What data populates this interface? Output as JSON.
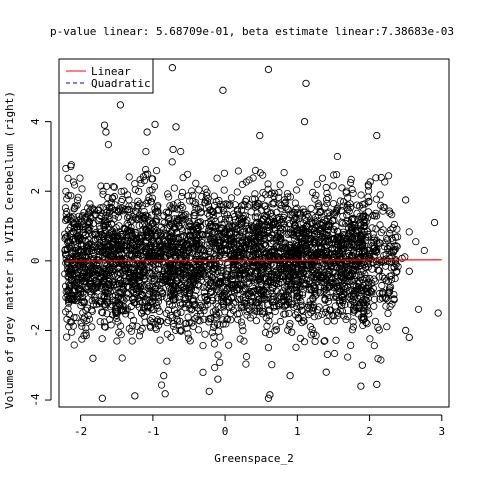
{
  "chart_data": {
    "type": "scatter",
    "title": "p-value linear: 5.68709e-01, beta estimate linear:7.38683e-03",
    "xlabel": "Greenspace_2",
    "ylabel": "Volume of grey matter in VIIb Cerebellum (right)",
    "xlim": [
      -2.3,
      3.1
    ],
    "ylim": [
      -4.2,
      5.8
    ],
    "x_ticks": [
      -2,
      -1,
      0,
      1,
      2,
      3
    ],
    "y_ticks": [
      -4,
      -2,
      0,
      2,
      4
    ],
    "x_tick_labels": [
      "-2",
      "-1",
      "0",
      "1",
      "2",
      "3"
    ],
    "y_tick_labels": [
      "-4",
      "-2",
      "0",
      "2",
      "4"
    ],
    "legend": {
      "position": "top-left",
      "entries": [
        {
          "label": "Linear",
          "color": "#ff0000",
          "style": "solid"
        },
        {
          "label": "Quadratic",
          "color": "#0000cc",
          "style": "dashed"
        }
      ]
    },
    "lines": [
      {
        "name": "Linear",
        "color": "#ff0000",
        "x": [
          -2.2,
          3.0
        ],
        "y": [
          -0.005,
          0.03
        ]
      }
    ],
    "series": [
      {
        "name": "observations",
        "marker": "open-circle",
        "color": "#000000",
        "x": [
          -1.7,
          -0.83,
          -0.22,
          0.6,
          0.62,
          1.4,
          -1.45,
          -1.67,
          -1.08,
          -0.97,
          -0.68,
          0.6,
          1.12,
          2.5,
          -0.73,
          -0.72,
          0.48,
          1.1,
          2.1,
          -1.83,
          -1.25,
          2.5,
          1.88,
          2.55,
          2.9,
          2.95,
          -1.65,
          -0.85,
          -0.03,
          0.9,
          1.9,
          2.1,
          -0.1,
          2.55
        ],
        "y": [
          -3.95,
          -3.82,
          -3.75,
          -3.95,
          -3.85,
          -3.2,
          4.48,
          3.9,
          3.7,
          3.92,
          3.85,
          5.5,
          5.1,
          1.75,
          5.55,
          3.2,
          3.6,
          4.0,
          3.6,
          -2.8,
          -3.88,
          -2.0,
          -3.6,
          -2.2,
          1.1,
          -1.5,
          3.7,
          -3.3,
          4.9,
          -3.3,
          -3.0,
          -3.55,
          -3.4,
          -0.3
        ]
      }
    ],
    "density_note_points": 60000
  }
}
